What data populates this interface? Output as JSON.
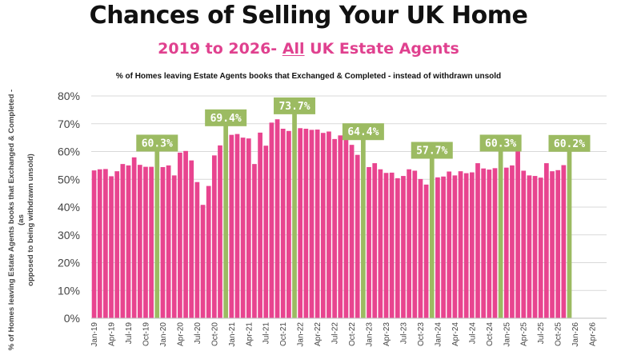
{
  "header": {
    "title": "Chances of Selling Your UK Home",
    "subtitle_prefix": "2019 to 2026- ",
    "subtitle_underlined": "All",
    "subtitle_suffix": " UK Estate Agents"
  },
  "colors": {
    "bar": "#e8448f",
    "highlight_bar": "#9cbb62",
    "annotation_bg": "#9cbb62",
    "subtitle": "#e0418f"
  },
  "chart_data": {
    "type": "bar",
    "title": "% of Homes leaving Estate Agents books that Exchanged & Completed - instead of withdrawn unsold",
    "ylabel_line1": "% of Homes leaving Estate Agents books that Exchanged & Completed - (as",
    "ylabel_line2": "opposed to being withdrawn unsold)",
    "ylim": [
      0,
      80
    ],
    "yticks": [
      "0%",
      "10%",
      "20%",
      "30%",
      "40%",
      "50%",
      "60%",
      "70%",
      "80%"
    ],
    "grid": true,
    "x_tick_labels": [
      "Jan-19",
      "Apr-19",
      "Jul-19",
      "Oct-19",
      "Jan-20",
      "Apr-20",
      "Jul-20",
      "Oct-20",
      "Jan-21",
      "Apr-21",
      "Jul-21",
      "Oct-21",
      "Jan-22",
      "Apr-22",
      "Jul-22",
      "Oct-22",
      "Jan-23",
      "Apr-23",
      "Jul-23",
      "Oct-23",
      "Jan-24",
      "Apr-24",
      "Jul-24",
      "Oct-24",
      "Jan-25",
      "Apr-25",
      "Jul-25",
      "Oct-25",
      "Jan-26",
      "Apr-26"
    ],
    "x_start": "Jan-19",
    "values": [
      53.2,
      53.6,
      53.7,
      51.1,
      52.9,
      55.5,
      55.0,
      57.9,
      55.2,
      54.5,
      54.5,
      60.3,
      54.4,
      55.0,
      51.4,
      59.6,
      60.2,
      56.8,
      49.0,
      40.8,
      47.6,
      58.6,
      62.2,
      69.4,
      66.0,
      66.3,
      65.0,
      64.7,
      55.5,
      66.8,
      62.1,
      70.4,
      71.6,
      68.2,
      67.4,
      73.7,
      68.4,
      68.2,
      67.8,
      67.9,
      66.7,
      67.2,
      64.5,
      65.8,
      66.5,
      62.4,
      58.8,
      64.4,
      54.4,
      55.8,
      53.6,
      52.3,
      52.4,
      50.4,
      51.2,
      53.6,
      53.1,
      50.1,
      48.1,
      57.7,
      50.7,
      51.0,
      52.8,
      51.4,
      52.9,
      52.2,
      52.5,
      55.8,
      53.9,
      53.5,
      54.0,
      60.3,
      54.2,
      55.0,
      61.2,
      53.1,
      51.4,
      51.2,
      50.6,
      55.8,
      52.9,
      53.3,
      55.1,
      60.2
    ],
    "highlights": [
      {
        "index": 11,
        "label": "60.3%"
      },
      {
        "index": 23,
        "label": "69.4%"
      },
      {
        "index": 35,
        "label": "73.7%"
      },
      {
        "index": 47,
        "label": "64.4%"
      },
      {
        "index": 59,
        "label": "57.7%"
      },
      {
        "index": 71,
        "label": "60.3%"
      },
      {
        "index": 83,
        "label": "60.2%"
      }
    ]
  }
}
